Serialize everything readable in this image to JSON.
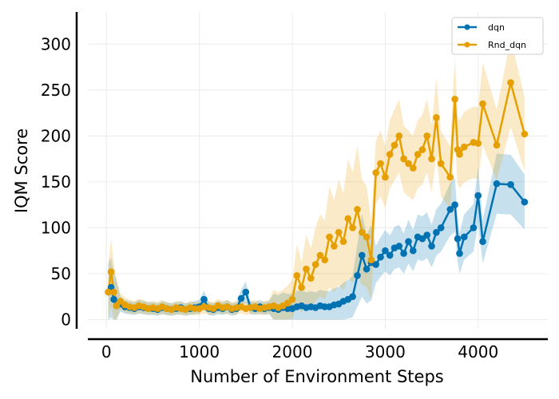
{
  "chart_data": {
    "type": "line",
    "xlabel": "Number of Environment Steps",
    "ylabel": "IQM Score",
    "xlim": [
      -200,
      4750
    ],
    "ylim": [
      -10,
      335
    ],
    "xticks": [
      0,
      1000,
      2000,
      3000,
      4000
    ],
    "yticks": [
      0,
      50,
      100,
      150,
      200,
      250,
      300
    ],
    "grid": true,
    "legend_position": "top-right",
    "series": [
      {
        "name": "dqn",
        "color": "#0072B2",
        "x": [
          20,
          50,
          80,
          110,
          150,
          200,
          250,
          300,
          350,
          400,
          450,
          500,
          550,
          600,
          650,
          700,
          750,
          800,
          850,
          900,
          950,
          1000,
          1050,
          1100,
          1150,
          1200,
          1250,
          1300,
          1350,
          1400,
          1450,
          1500,
          1550,
          1600,
          1650,
          1700,
          1750,
          1800,
          1850,
          1900,
          1950,
          2000,
          2050,
          2100,
          2150,
          2200,
          2250,
          2300,
          2350,
          2400,
          2450,
          2500,
          2550,
          2600,
          2650,
          2700,
          2750,
          2800,
          2850,
          2900,
          2950,
          3000,
          3050,
          3100,
          3150,
          3200,
          3250,
          3300,
          3350,
          3400,
          3450,
          3500,
          3550,
          3600,
          3700,
          3750,
          3780,
          3800,
          3850,
          3950,
          4000,
          4050,
          4200,
          4350,
          4500
        ],
        "values": [
          30,
          35,
          22,
          15,
          17,
          14,
          13,
          12,
          14,
          13,
          12,
          12,
          11,
          13,
          12,
          11,
          12,
          13,
          11,
          12,
          13,
          14,
          22,
          12,
          11,
          13,
          12,
          14,
          11,
          12,
          23,
          30,
          13,
          12,
          14,
          12,
          13,
          12,
          11,
          13,
          12,
          12,
          14,
          15,
          13,
          14,
          13,
          15,
          14,
          14,
          16,
          17,
          20,
          22,
          25,
          48,
          70,
          55,
          62,
          60,
          68,
          75,
          70,
          78,
          80,
          72,
          85,
          75,
          90,
          88,
          92,
          80,
          95,
          100,
          120,
          125,
          88,
          72,
          90,
          100,
          135,
          85,
          148,
          147,
          128
        ]
      },
      {
        "name": "Rnd_dqn",
        "color": "#E69F00",
        "x": [
          20,
          50,
          80,
          110,
          150,
          200,
          250,
          300,
          350,
          400,
          450,
          500,
          550,
          600,
          650,
          700,
          750,
          800,
          850,
          900,
          950,
          1000,
          1050,
          1100,
          1150,
          1200,
          1250,
          1300,
          1350,
          1400,
          1450,
          1500,
          1550,
          1600,
          1650,
          1700,
          1750,
          1800,
          1850,
          1900,
          1950,
          2000,
          2050,
          2100,
          2150,
          2200,
          2250,
          2300,
          2350,
          2400,
          2450,
          2500,
          2550,
          2600,
          2650,
          2700,
          2750,
          2800,
          2850,
          2900,
          2950,
          3000,
          3050,
          3100,
          3150,
          3200,
          3250,
          3300,
          3350,
          3400,
          3450,
          3500,
          3550,
          3600,
          3700,
          3750,
          3780,
          3800,
          3850,
          3950,
          4000,
          4050,
          4200,
          4350,
          4500
        ],
        "values": [
          30,
          52,
          30,
          15,
          20,
          16,
          14,
          13,
          15,
          14,
          12,
          13,
          12,
          14,
          12,
          11,
          13,
          12,
          11,
          13,
          12,
          12,
          14,
          13,
          12,
          15,
          13,
          14,
          12,
          13,
          14,
          12,
          13,
          14,
          12,
          13,
          14,
          15,
          13,
          15,
          18,
          22,
          48,
          35,
          55,
          45,
          60,
          70,
          65,
          90,
          80,
          95,
          85,
          110,
          100,
          120,
          95,
          90,
          65,
          160,
          170,
          155,
          180,
          190,
          200,
          175,
          170,
          165,
          180,
          185,
          200,
          175,
          220,
          170,
          155,
          240,
          185,
          180,
          188,
          193,
          192,
          235,
          190,
          258,
          202
        ]
      }
    ]
  }
}
